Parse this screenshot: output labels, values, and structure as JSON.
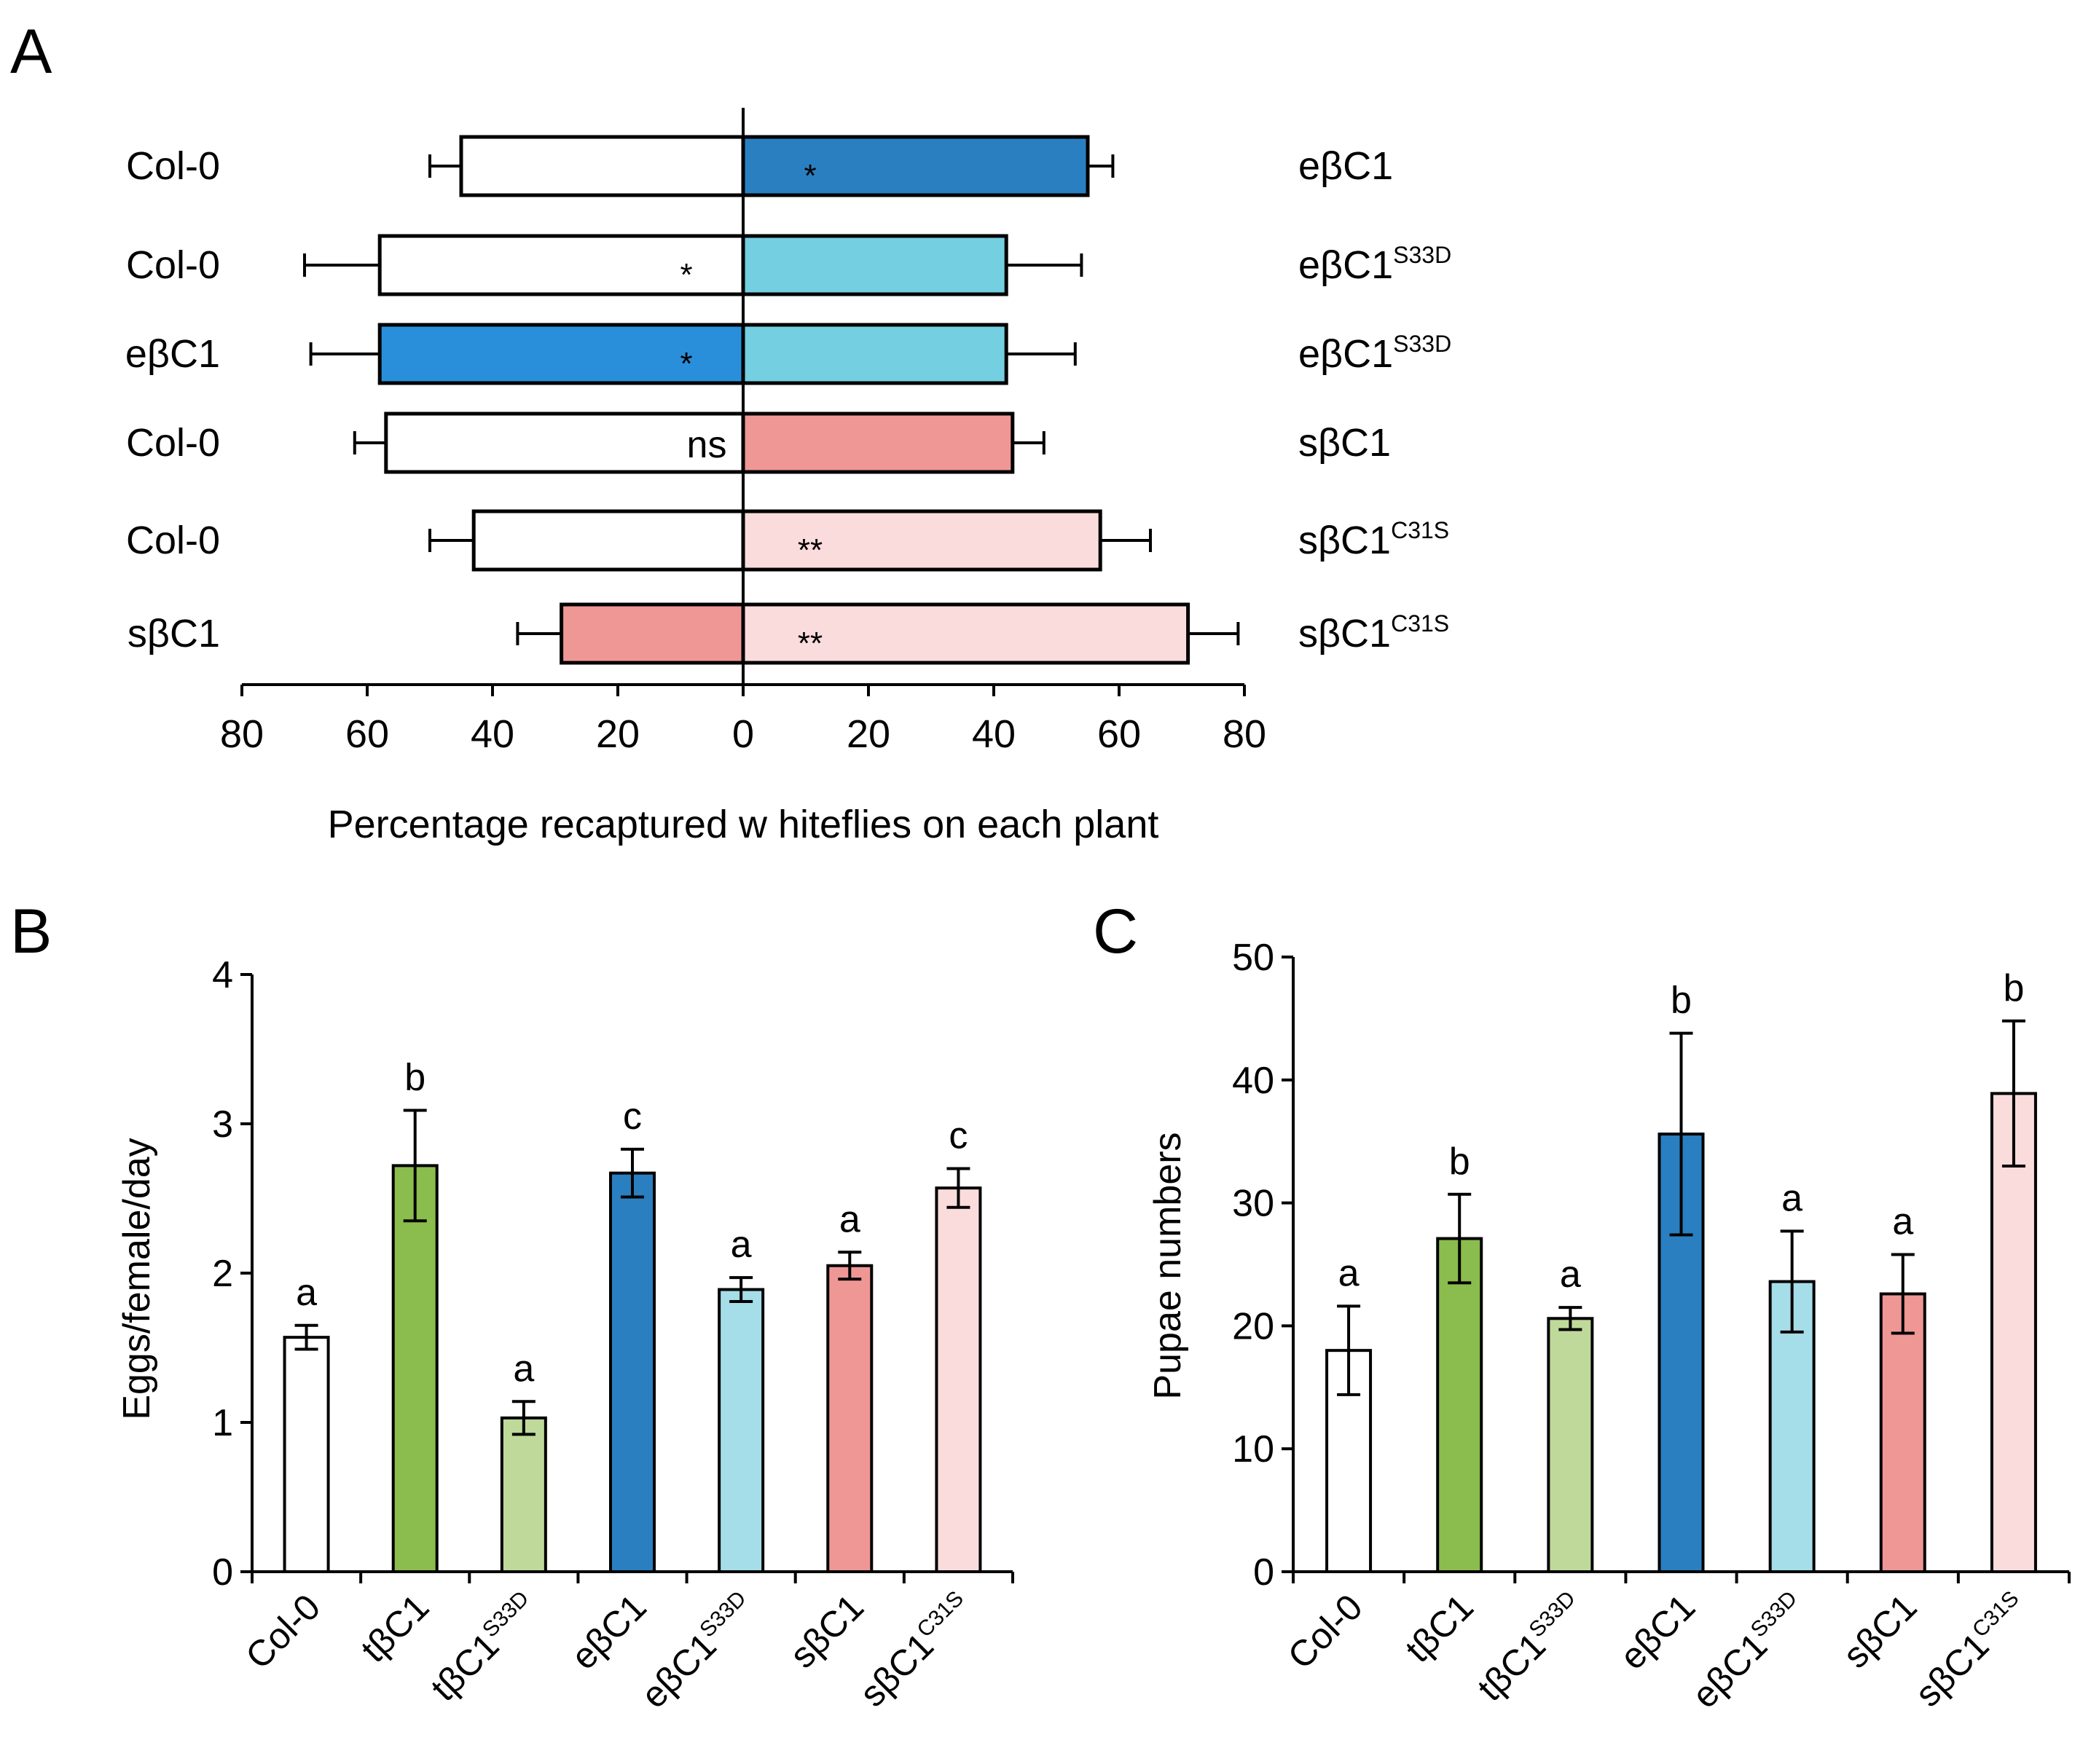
{
  "panel_letters": [
    "A",
    "B",
    "C"
  ],
  "chart_data": [
    {
      "panel": "A",
      "type": "bar",
      "orientation": "horizontal-back-to-back",
      "xlabel": "Percentage recaptured w hiteflies on each plant",
      "xlim": [
        -80,
        80
      ],
      "ticks": [
        80,
        60,
        40,
        20,
        0,
        20,
        40,
        60,
        80
      ],
      "rows": [
        {
          "left_label": "Col-0",
          "left_value": 45,
          "left_error": 5,
          "left_color": "#ffffff",
          "right_label": "eβC1",
          "right_sup": "",
          "right_value": 55,
          "right_error": 4,
          "right_color": "#2a7fc0",
          "sig": "*",
          "sig_side": "right"
        },
        {
          "left_label": "Col-0",
          "left_value": 58,
          "left_error": 12,
          "left_color": "#ffffff",
          "right_label": "eβC1",
          "right_sup": "S33D",
          "right_value": 42,
          "right_error": 12,
          "right_color": "#74cfe0",
          "sig": "*",
          "sig_side": "left"
        },
        {
          "left_label": "eβC1",
          "left_value": 58,
          "left_error": 11,
          "left_color": "#2a8fda",
          "right_label": "eβC1",
          "right_sup": "S33D",
          "right_value": 42,
          "right_error": 11,
          "right_color": "#74cfe0",
          "sig": "*",
          "sig_side": "left"
        },
        {
          "left_label": "Col-0",
          "left_value": 57,
          "left_error": 5,
          "left_color": "#ffffff",
          "right_label": "sβC1",
          "right_sup": "",
          "right_value": 43,
          "right_error": 5,
          "right_color": "#ef9795",
          "sig": "ns",
          "sig_side": "left"
        },
        {
          "left_label": "Col-0",
          "left_value": 43,
          "left_error": 7,
          "left_color": "#ffffff",
          "right_label": "sβC1",
          "right_sup": "C31S",
          "right_value": 57,
          "right_error": 8,
          "right_color": "#fbdcdd",
          "sig": "**",
          "sig_side": "right"
        },
        {
          "left_label": "sβC1",
          "left_value": 29,
          "left_error": 7,
          "left_color": "#ef9795",
          "right_label": "sβC1",
          "right_sup": "C31S",
          "right_value": 71,
          "right_error": 8,
          "right_color": "#fbdcdd",
          "sig": "**",
          "sig_side": "right"
        }
      ]
    },
    {
      "panel": "B",
      "type": "bar",
      "ylabel": "Eggs/female/day",
      "ylim": [
        0,
        4
      ],
      "yticks": [
        0,
        1,
        2,
        3,
        4
      ],
      "categories": [
        {
          "base": "Col-0",
          "sup": ""
        },
        {
          "base": "tβC1",
          "sup": ""
        },
        {
          "base": "tβC1",
          "sup": "S33D"
        },
        {
          "base": "eβC1",
          "sup": ""
        },
        {
          "base": "eβC1",
          "sup": "S33D"
        },
        {
          "base": "sβC1",
          "sup": ""
        },
        {
          "base": "sβC1",
          "sup": "C31S"
        }
      ],
      "values": [
        1.57,
        2.72,
        1.03,
        2.67,
        1.89,
        2.05,
        2.57
      ],
      "errors": [
        0.08,
        0.37,
        0.11,
        0.16,
        0.08,
        0.09,
        0.13
      ],
      "letters": [
        "a",
        "b",
        "a",
        "c",
        "a",
        "a",
        "c"
      ],
      "colors": [
        "#ffffff",
        "#8bbc4e",
        "#bfd99a",
        "#2a7fc0",
        "#a5dde8",
        "#ef9795",
        "#fbdcdd"
      ]
    },
    {
      "panel": "C",
      "type": "bar",
      "ylabel": "Pupae numbers",
      "ylim": [
        0,
        50
      ],
      "yticks": [
        0,
        10,
        20,
        30,
        40,
        50
      ],
      "categories": [
        {
          "base": "Col-0",
          "sup": ""
        },
        {
          "base": "tβC1",
          "sup": ""
        },
        {
          "base": "tβC1",
          "sup": "S33D"
        },
        {
          "base": "eβC1",
          "sup": ""
        },
        {
          "base": "eβC1",
          "sup": "S33D"
        },
        {
          "base": "sβC1",
          "sup": ""
        },
        {
          "base": "sβC1",
          "sup": "C31S"
        }
      ],
      "values": [
        18.0,
        27.1,
        20.6,
        35.6,
        23.6,
        22.6,
        38.9
      ],
      "errors": [
        3.6,
        3.6,
        0.9,
        8.2,
        4.1,
        3.2,
        5.9
      ],
      "letters": [
        "a",
        "b",
        "a",
        "b",
        "a",
        "a",
        "b"
      ],
      "colors": [
        "#ffffff",
        "#8bbc4e",
        "#bfd99a",
        "#2a7fc0",
        "#a5dde8",
        "#ef9795",
        "#fbdcdd"
      ]
    }
  ]
}
